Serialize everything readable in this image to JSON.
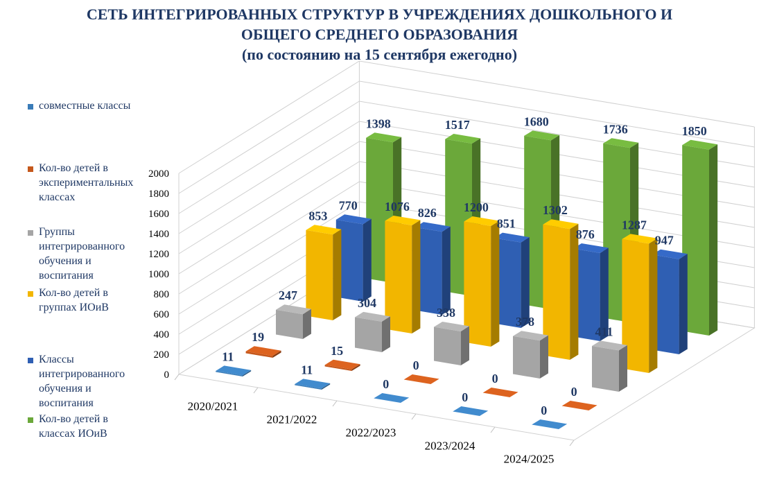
{
  "title": {
    "line1": "СЕТЬ ИНТЕГРИРОВАННЫХ СТРУКТУР В УЧРЕЖДЕНИЯХ ДОШКОЛЬНОГО И",
    "line2": "ОБЩЕГО СРЕДНЕГО ОБРАЗОВАНИЯ",
    "line3": "(по состоянию на 15 сентября ежегодно)"
  },
  "legend": {
    "items": [
      {
        "label": "совместные классы",
        "color": "#3A7CB8"
      },
      {
        "label": "Кол-во детей в экспериментальных классах",
        "color": "#C5581C"
      },
      {
        "label": "Группы интегрированного обучения и воспитания",
        "color": "#A5A5A5"
      },
      {
        "label": "Кол-во детей в группах ИОиВ",
        "color": "#F2B600"
      },
      {
        "label": "Классы интегрированного обучения и воспитания",
        "color": "#2F5FB3"
      },
      {
        "label": "Кол-во детей в классах ИОиВ",
        "color": "#6BA83A"
      }
    ]
  },
  "chart_data": {
    "type": "bar",
    "style": "3d-column",
    "title": "СЕТЬ ИНТЕГРИРОВАННЫХ СТРУКТУР В УЧРЕЖДЕНИЯХ ДОШКОЛЬНОГО И ОБЩЕГО СРЕДНЕГО ОБРАЗОВАНИЯ (по состоянию на 15 сентября ежегодно)",
    "categories": [
      "2020/2021",
      "2021/2022",
      "2022/2023",
      "2023/2024",
      "2024/2025"
    ],
    "series": [
      {
        "name": "совместные классы",
        "values": [
          11,
          11,
          0,
          0,
          0
        ],
        "color": "#3A7CB8"
      },
      {
        "name": "Кол-во детей в экспериментальных классах",
        "values": [
          19,
          15,
          0,
          0,
          0
        ],
        "color": "#C5581C"
      },
      {
        "name": "Группы интегрированного обучения и воспитания",
        "values": [
          247,
          304,
          338,
          378,
          411
        ],
        "color": "#A5A5A5"
      },
      {
        "name": "Кол-во детей в группах ИОиВ",
        "values": [
          853,
          1076,
          1200,
          1302,
          1287
        ],
        "color": "#F2B600"
      },
      {
        "name": "Классы интегрированного обучения и воспитания",
        "values": [
          770,
          826,
          851,
          876,
          947
        ],
        "color": "#2F5FB3"
      },
      {
        "name": "Кол-во детей в классах ИОиВ",
        "values": [
          1398,
          1517,
          1680,
          1736,
          1850
        ],
        "color": "#6BA83A"
      }
    ],
    "yticks": [
      "0",
      "200",
      "400",
      "600",
      "800",
      "1000",
      "1200",
      "1400",
      "1600",
      "1800",
      "2000"
    ],
    "ylim": [
      0,
      2000
    ],
    "grid": true,
    "legend_position": "left",
    "label_color": "#1F3864"
  }
}
